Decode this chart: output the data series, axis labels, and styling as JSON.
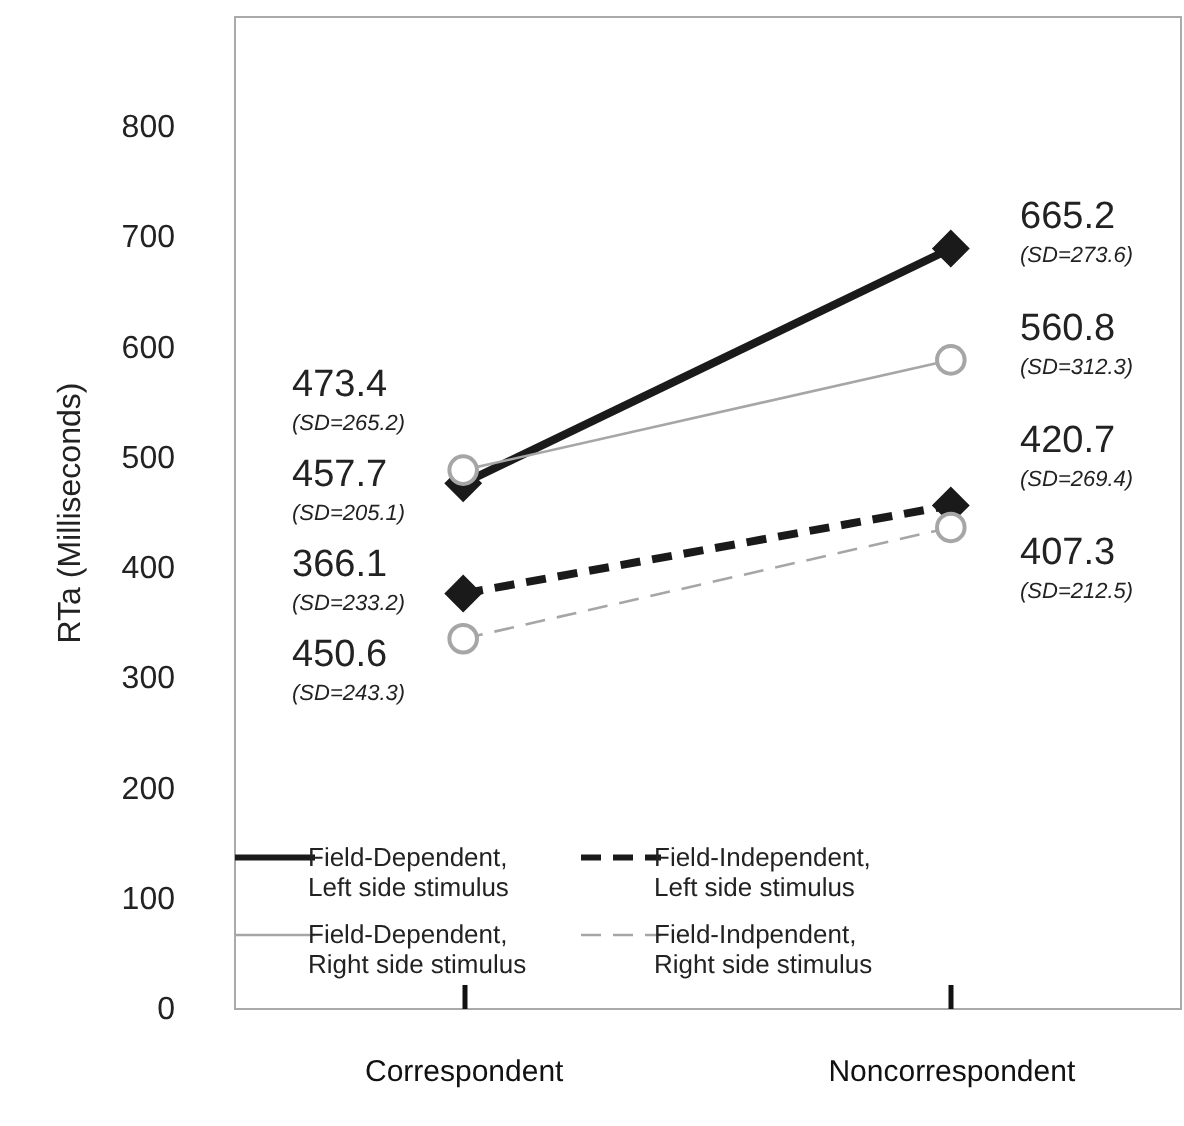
{
  "chart_data": {
    "type": "line",
    "ylabel": "RTa  (Milliseconds)",
    "categories": [
      "Correspondent",
      "Noncorrespondent"
    ],
    "series": [
      {
        "name": "Field-Dependent, Left side stimulus",
        "color": "#1a1a1a",
        "values": [
          476,
          689
        ],
        "marker": "diamond",
        "line_style": "solid"
      },
      {
        "name": "Field-Dependent, Right side stimulus",
        "color": "#a6a6a6",
        "values": [
          488,
          588
        ],
        "marker": "circle",
        "line_style": "solid"
      },
      {
        "name": "Field-Independent, Left side stimulus",
        "color": "#1a1a1a",
        "values": [
          376,
          456
        ],
        "marker": "diamond",
        "line_style": "dashed"
      },
      {
        "name": "Field-Indpendent, Right side stimulus",
        "color": "#a6a6a6",
        "values": [
          335,
          436
        ],
        "marker": "circle",
        "line_style": "dashed"
      }
    ],
    "ylim": [
      0,
      900
    ],
    "yticks": [
      0,
      100,
      200,
      300,
      400,
      500,
      600,
      700,
      800
    ],
    "grid": false,
    "legend": "bottom",
    "annotations": [
      "473.4",
      "(SD=265.2)",
      "457.7",
      "(SD=205.1)",
      "366.1",
      "(SD=233.2)",
      "450.6",
      "(SD=243.3)",
      "665.2",
      "(SD=273.6)",
      "560.8",
      "(SD=312.3)",
      "420.7",
      "(SD=269.4)",
      "407.3",
      "(SD=212.5)"
    ]
  }
}
